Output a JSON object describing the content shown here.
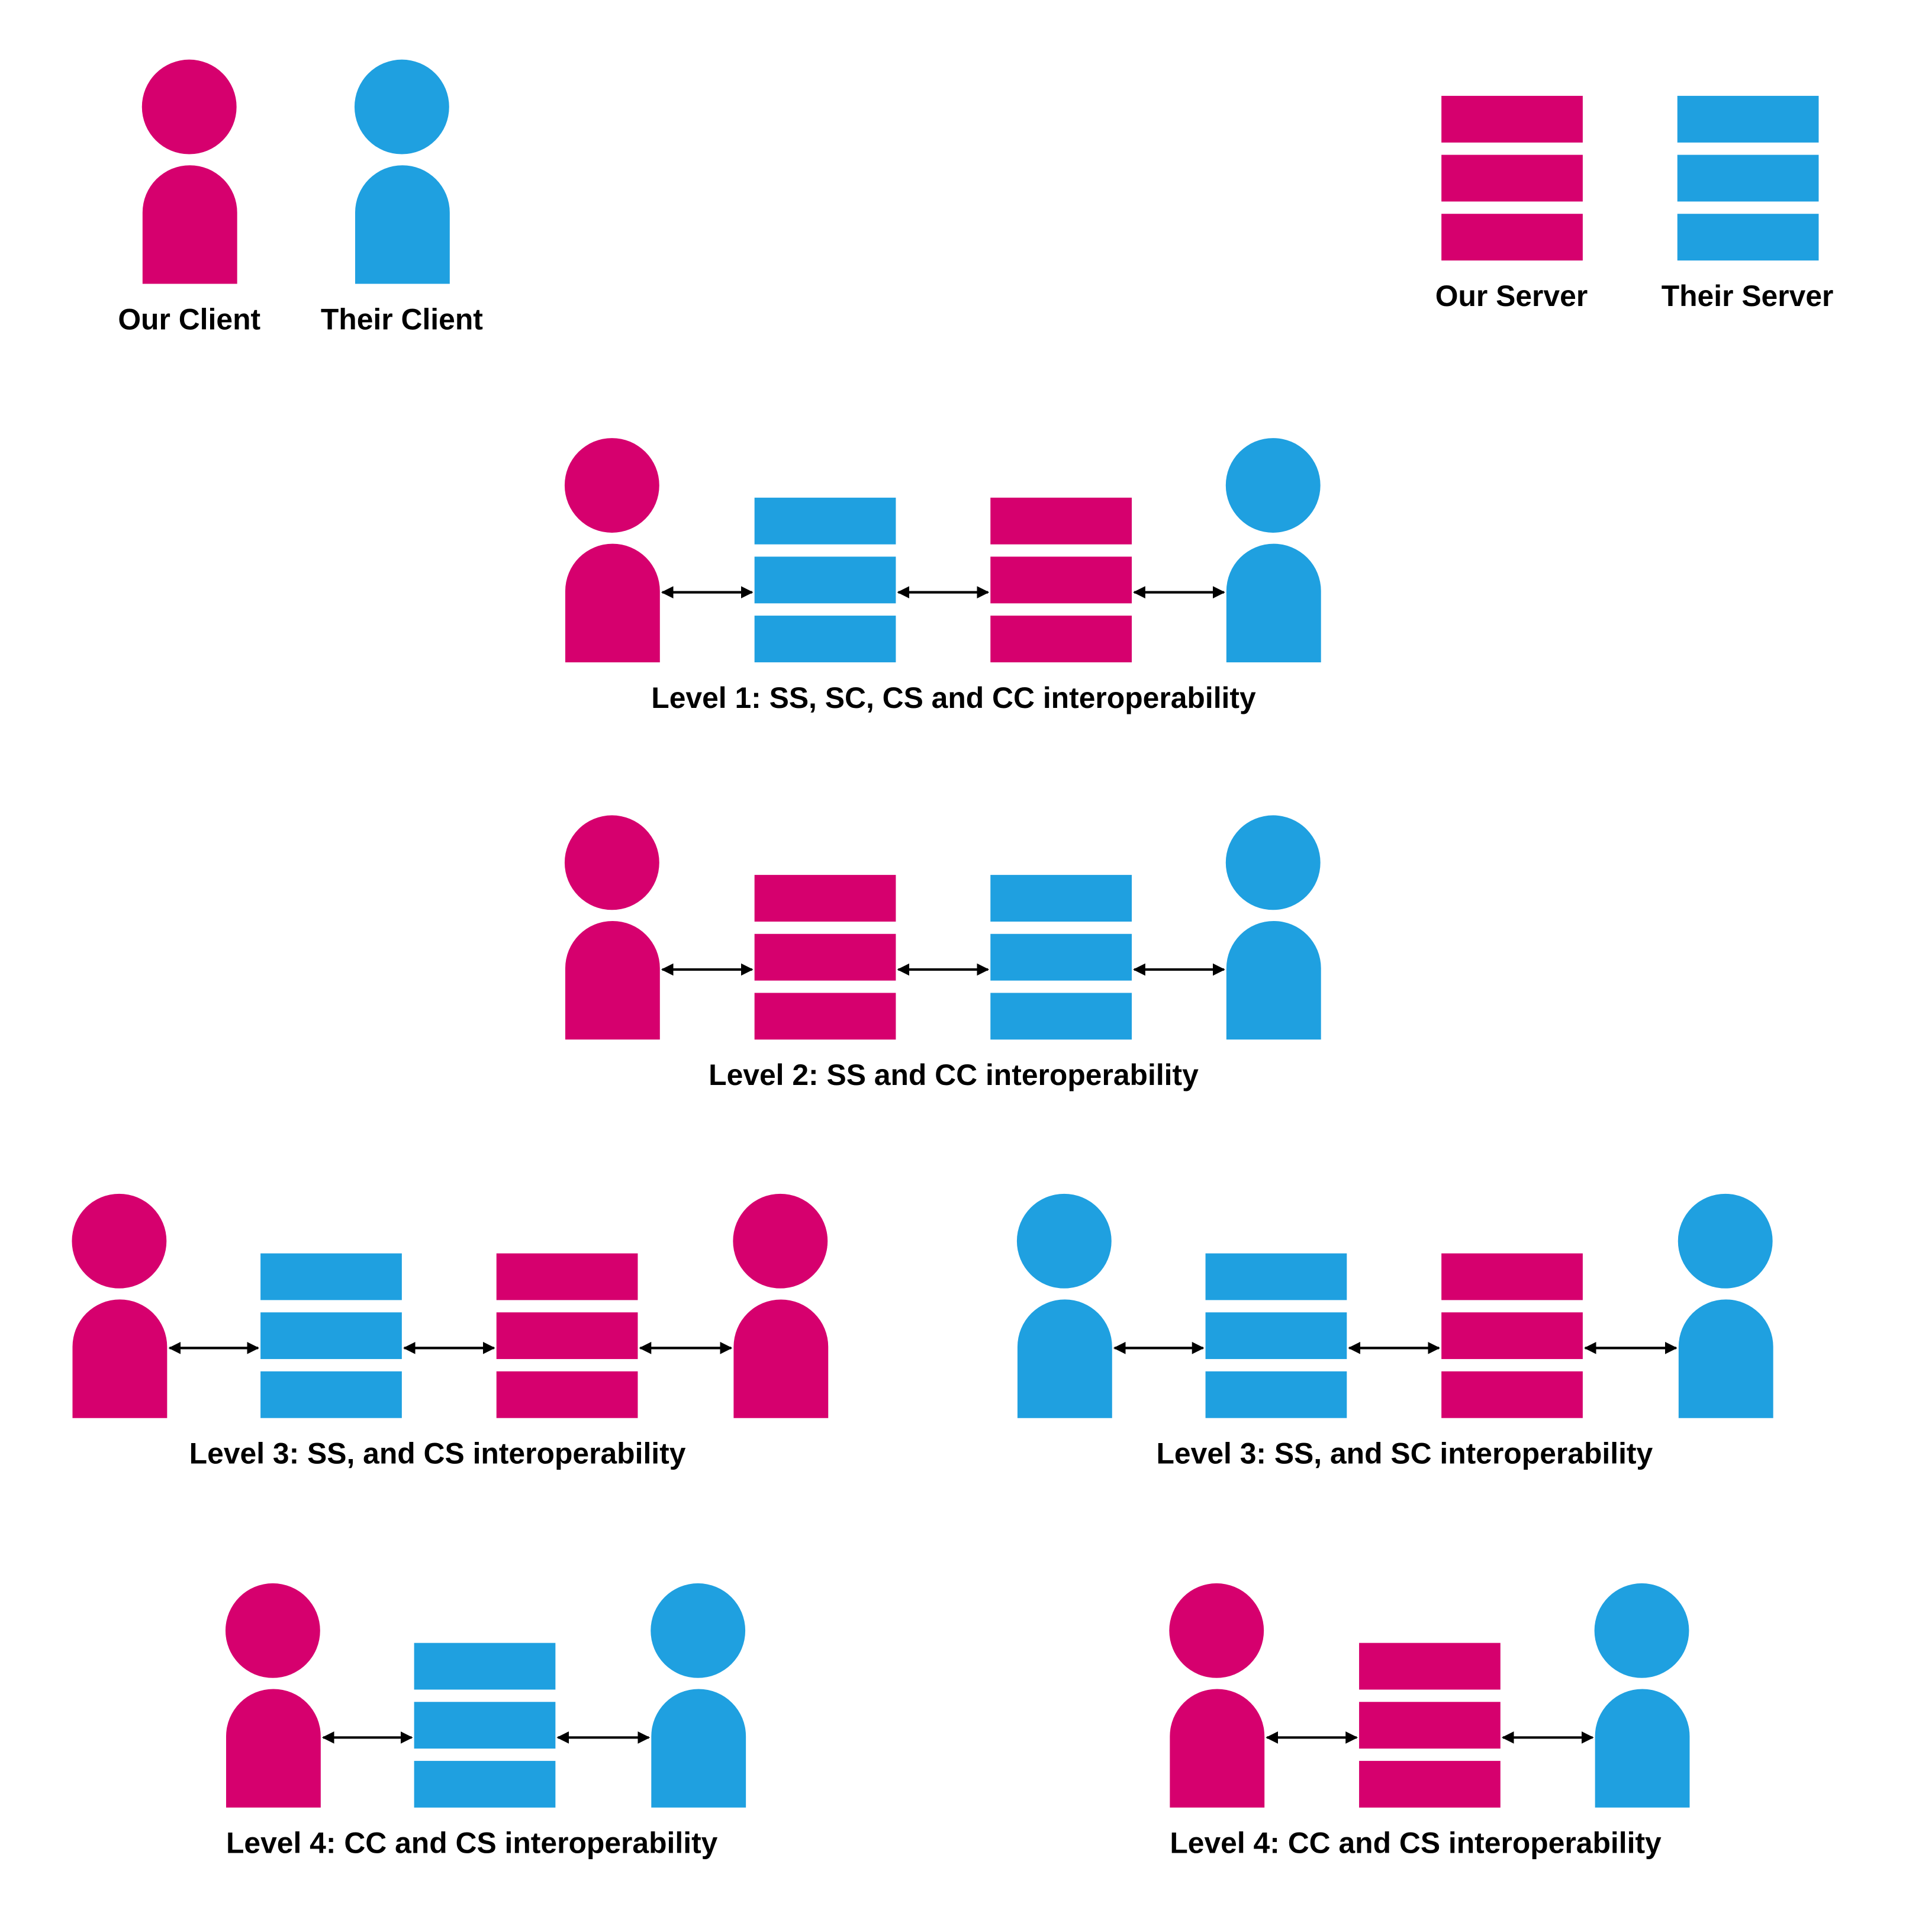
{
  "colors": {
    "ours": "#D6006E",
    "theirs": "#1FA0E0",
    "arrow": "#000000",
    "background": "#FFFFFF"
  },
  "legend": {
    "our_client": "Our Client",
    "their_client": "Their Client",
    "our_server": "Our Server",
    "their_server": "Their Server"
  },
  "scenarios": [
    {
      "label": "Level 1: SS, SC, CS and CC interoperability",
      "chain": [
        "our-client",
        "their-server",
        "our-server",
        "their-client"
      ]
    },
    {
      "label": "Level 2: SS and CC interoperability",
      "chain": [
        "our-client",
        "our-server",
        "their-server",
        "their-client"
      ]
    },
    {
      "label": "Level 3: SS, and CS interoperability",
      "chain": [
        "our-client",
        "their-server",
        "our-server",
        "our-client"
      ]
    },
    {
      "label": "Level 3: SS, and SC interoperability",
      "chain": [
        "their-client",
        "their-server",
        "our-server",
        "their-client"
      ]
    },
    {
      "label": "Level 4: CC and CS interoperability",
      "chain": [
        "our-client",
        "their-server",
        "their-client"
      ]
    },
    {
      "label": "Level 4: CC and CS interoperability",
      "chain": [
        "our-client",
        "our-server",
        "their-client"
      ]
    }
  ]
}
